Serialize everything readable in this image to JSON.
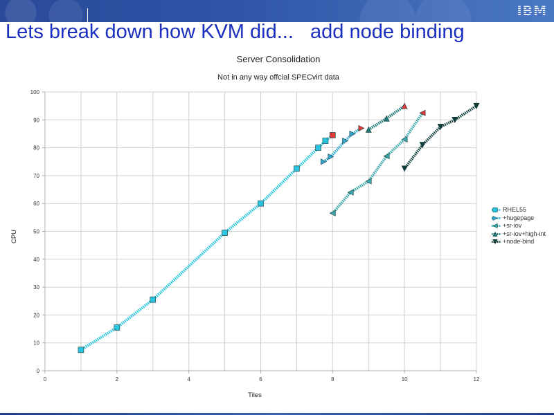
{
  "slide": {
    "title": "Lets break down how KVM did...   add node binding",
    "logo": "IBM"
  },
  "chart_data": {
    "type": "line",
    "title": "Server Consolidation",
    "subtitle": "Not in any way offcial SPECvirt data",
    "xlabel": "Tiles",
    "ylabel": "CPU",
    "xlim": [
      0,
      12
    ],
    "ylim": [
      0,
      100
    ],
    "xticks": [
      "0",
      "2",
      "4",
      "6",
      "8",
      "10",
      "12"
    ],
    "yticks": [
      "0",
      "10",
      "20",
      "30",
      "40",
      "50",
      "60",
      "70",
      "80",
      "90",
      "100"
    ],
    "grid": true,
    "legend_position": "right",
    "highlight_color": "#e03a3a",
    "series": [
      {
        "name": "RHEL55",
        "marker": "square",
        "color": "#28c4e0",
        "x": [
          1,
          2,
          3,
          5,
          6,
          7,
          7.6,
          7.8,
          8
        ],
        "y": [
          7.5,
          15.5,
          25.5,
          49.5,
          60,
          72.5,
          80,
          82.5,
          84.5
        ],
        "last_point_highlight": true
      },
      {
        "name": "+hugepage",
        "marker": "triangle-right",
        "color": "#30a8d0",
        "x": [
          7.75,
          7.95,
          8.35,
          8.55,
          8.8
        ],
        "y": [
          75,
          76.8,
          82.5,
          85,
          87
        ],
        "last_point_highlight": true
      },
      {
        "name": "+sr-iov",
        "marker": "triangle-left",
        "color": "#3aa8aa",
        "x": [
          8,
          8.5,
          9,
          9.5,
          10,
          10.5
        ],
        "y": [
          56.5,
          64,
          68,
          77,
          83,
          92.5
        ],
        "last_point_highlight": true
      },
      {
        "name": "+sr-iov+high-int",
        "marker": "triangle-up",
        "color": "#1e7a78",
        "x": [
          9,
          9.5,
          10
        ],
        "y": [
          86.5,
          90.5,
          95
        ],
        "last_point_highlight": true
      },
      {
        "name": "+node-bind",
        "marker": "triangle-down",
        "color": "#0f3e3c",
        "x": [
          10,
          10.5,
          11,
          11.4,
          12
        ],
        "y": [
          72.5,
          81,
          87.5,
          90,
          95
        ],
        "last_point_highlight": false
      }
    ]
  }
}
